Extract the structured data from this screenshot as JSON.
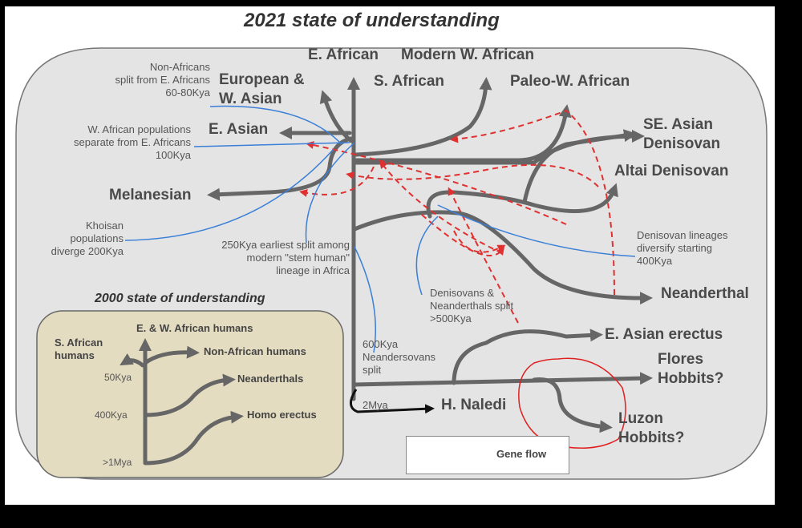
{
  "title": "2021 state of understanding",
  "populations": {
    "e_african": "E. African",
    "modern_w_african": "Modern W. African",
    "european": "European &\nW. Asian",
    "s_african": "S. African",
    "paleo_w_african": "Paleo-W. African",
    "e_asian": "E. Asian",
    "se_asian_denisovan": "SE. Asian\nDenisovan",
    "altai_denisovan": "Altai Denisovan",
    "melanesian": "Melanesian",
    "neanderthal": "Neanderthal",
    "e_asian_erectus": "E. Asian erectus",
    "flores_hobbits": "Flores\nHobbits?",
    "luzon_hobbits": "Luzon\nHobbits?",
    "h_naledi": "H. Naledi"
  },
  "annotations": {
    "non_africans_split": "Non-Africans\nsplit from E. Africans\n60-80Kya",
    "w_african_separate": "W. African populations\nseparate from E. Africans\n100Kya",
    "khoisan": "Khoisan\npopulations\ndiverge 200Kya",
    "stem_human": "250Kya earliest split among\nmodern \"stem human\"\nlineage in Africa",
    "denisovans_neanderthals": "Denisovans &\nNeanderthals split\n>500Kya",
    "denisovan_lineages": "Denisovan lineages\ndiversify starting\n400Kya",
    "neandersovans": "600Kya\nNeandersovans\nsplit",
    "two_mya": "2Mya"
  },
  "legend": {
    "gene_flow": "Gene flow"
  },
  "inset": {
    "title": "2000 state of understanding",
    "e_w_african": "E. & W. African humans",
    "s_african": "S. African\nhumans",
    "non_african": "Non-African humans",
    "neanderthals": "Neanderthals",
    "homo_erectus": "Homo erectus",
    "t50": "50Kya",
    "t400": "400Kya",
    "t1mya": ">1Mya"
  },
  "colors": {
    "lineage": "#666666",
    "gene_flow": "#e03030",
    "split_note": "#3a7fd8",
    "inset_bg": "#e4dcc1",
    "highlight": "#e02020"
  }
}
